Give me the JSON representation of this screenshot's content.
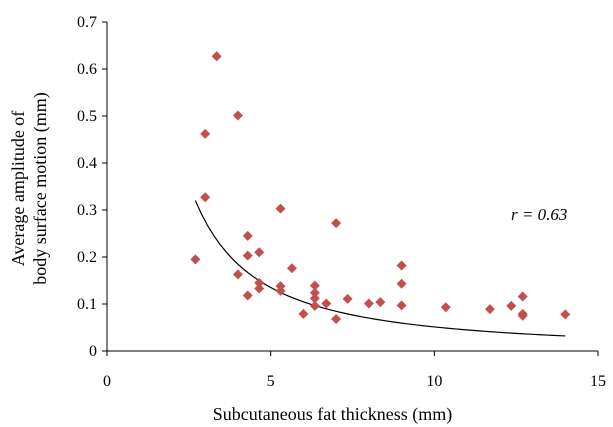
{
  "chart_data": {
    "type": "scatter",
    "xlabel": "Subcutaneous fat thickness (mm)",
    "ylabel_lines": [
      "Average amplitude of",
      "body surface motion (mm)"
    ],
    "xlim": [
      0,
      15
    ],
    "ylim": [
      0,
      0.7
    ],
    "x_ticks": [
      "0",
      "5",
      "10",
      "15"
    ],
    "y_ticks": [
      "0",
      "0.1",
      "0.2",
      "0.3",
      "0.4",
      "0.5",
      "0.6",
      "0.7"
    ],
    "grid": false,
    "legend": false,
    "annotation": "r = 0.63",
    "marker_color": "#C0504D",
    "trendline_color": "#000000",
    "points": [
      {
        "x": 2.7,
        "y": 0.195
      },
      {
        "x": 3.0,
        "y": 0.462
      },
      {
        "x": 3.0,
        "y": 0.327
      },
      {
        "x": 3.35,
        "y": 0.627
      },
      {
        "x": 4.0,
        "y": 0.501
      },
      {
        "x": 4.0,
        "y": 0.163
      },
      {
        "x": 4.3,
        "y": 0.245
      },
      {
        "x": 4.3,
        "y": 0.203
      },
      {
        "x": 4.3,
        "y": 0.118
      },
      {
        "x": 4.65,
        "y": 0.21
      },
      {
        "x": 4.65,
        "y": 0.145
      },
      {
        "x": 4.65,
        "y": 0.133
      },
      {
        "x": 5.3,
        "y": 0.303
      },
      {
        "x": 5.3,
        "y": 0.138
      },
      {
        "x": 5.3,
        "y": 0.128
      },
      {
        "x": 5.65,
        "y": 0.176
      },
      {
        "x": 6.0,
        "y": 0.079
      },
      {
        "x": 6.35,
        "y": 0.139
      },
      {
        "x": 6.35,
        "y": 0.124
      },
      {
        "x": 6.35,
        "y": 0.112
      },
      {
        "x": 6.35,
        "y": 0.096
      },
      {
        "x": 6.7,
        "y": 0.101
      },
      {
        "x": 7.0,
        "y": 0.272
      },
      {
        "x": 7.0,
        "y": 0.068
      },
      {
        "x": 7.35,
        "y": 0.111
      },
      {
        "x": 8.0,
        "y": 0.101
      },
      {
        "x": 8.35,
        "y": 0.104
      },
      {
        "x": 9.0,
        "y": 0.182
      },
      {
        "x": 9.0,
        "y": 0.143
      },
      {
        "x": 9.0,
        "y": 0.097
      },
      {
        "x": 10.35,
        "y": 0.093
      },
      {
        "x": 11.7,
        "y": 0.089
      },
      {
        "x": 12.35,
        "y": 0.096
      },
      {
        "x": 12.7,
        "y": 0.116
      },
      {
        "x": 12.7,
        "y": 0.079
      },
      {
        "x": 12.7,
        "y": 0.075
      },
      {
        "x": 14.0,
        "y": 0.078
      }
    ],
    "trendline": {
      "type": "power",
      "x_range": [
        2.7,
        14.0
      ],
      "y_at_x_start": 0.32,
      "y_at_x_end": 0.032
    }
  }
}
